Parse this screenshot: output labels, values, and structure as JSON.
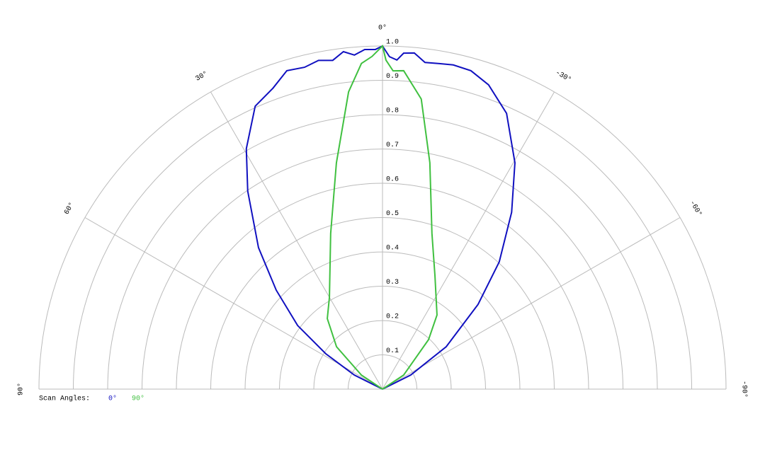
{
  "chart_data": {
    "type": "polar",
    "xlim": [
      -90,
      90
    ],
    "xticks": [
      {
        "value": 90,
        "label": "90°"
      },
      {
        "value": 60,
        "label": "60°"
      },
      {
        "value": 30,
        "label": "30°"
      },
      {
        "value": 0,
        "label": "0°"
      },
      {
        "value": -30,
        "label": "-30°"
      },
      {
        "value": -60,
        "label": "-60°"
      },
      {
        "value": -90,
        "label": "-90°"
      }
    ],
    "ylim": [
      0,
      1
    ],
    "yticks": [
      0.1,
      0.2,
      0.3,
      0.4,
      0.5,
      0.6,
      0.7,
      0.8,
      0.9,
      {
        "value": 1,
        "label": "1.0"
      }
    ],
    "grid": true,
    "legend_title": "Scan Angles:",
    "series": [
      {
        "name": "0°",
        "color": "#1010c0",
        "x": [
          90,
          63.4,
          58,
          53.1,
          47,
          41.2,
          34.2,
          29.5,
          24.2,
          20,
          16.7,
          13.6,
          11,
          8.6,
          6.6,
          4.8,
          3,
          1.2,
          0,
          -1.2,
          -2.5,
          -3.6,
          -5.4,
          -7.4,
          -9.9,
          -12.3,
          -15.5,
          -19.2,
          -24.2,
          -30.3,
          -36.1,
          -42.5,
          -48.4,
          -56.3,
          -63.4,
          -90
        ],
        "values": [
          0,
          0.092,
          0.195,
          0.309,
          0.423,
          0.548,
          0.698,
          0.805,
          0.904,
          0.933,
          0.969,
          0.965,
          0.976,
          0.969,
          0.99,
          0.977,
          0.991,
          0.99,
          1.0,
          0.969,
          0.96,
          0.981,
          0.984,
          0.96,
          0.963,
          0.967,
          0.963,
          0.939,
          0.881,
          0.764,
          0.638,
          0.503,
          0.372,
          0.223,
          0.092,
          0
        ]
      },
      {
        "name": "90°",
        "color": "#40c040",
        "x": [
          90,
          56.3,
          47.3,
          38,
          30,
          18.4,
          11.5,
          6.5,
          3.7,
          1.8,
          0,
          -0.6,
          -1.9,
          -3.8,
          -7.6,
          -11.8,
          -17.6,
          -24.8,
          -36.3,
          -42.9,
          -56.3,
          -90
        ],
        "values": [
          0,
          0.074,
          0.182,
          0.261,
          0.309,
          0.478,
          0.673,
          0.872,
          0.951,
          0.97,
          1.0,
          0.959,
          0.928,
          0.93,
          0.853,
          0.674,
          0.476,
          0.364,
          0.268,
          0.197,
          0.074,
          0
        ]
      }
    ]
  }
}
